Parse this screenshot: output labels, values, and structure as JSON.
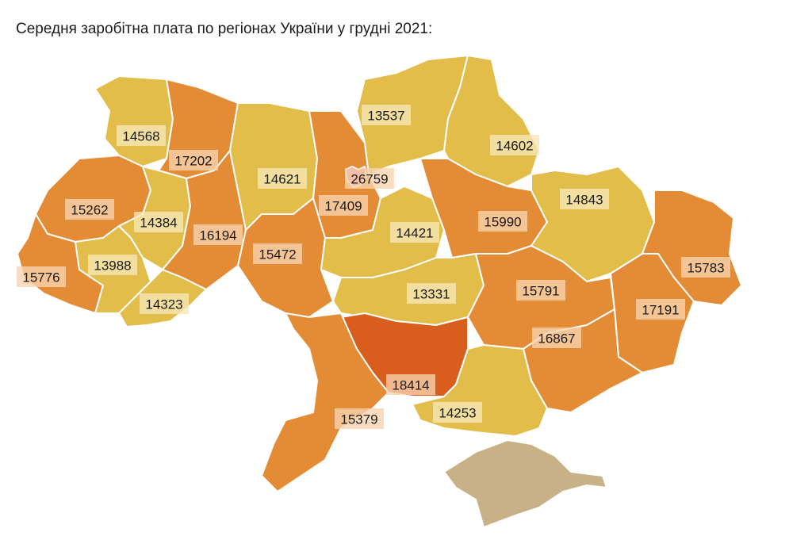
{
  "title": "Середня заробітна плата по регіонах України у грудні 2021:",
  "colors": {
    "low": "#e2bd4a",
    "mid": "#e48c35",
    "high": "#d95e1e",
    "top": "#e07a8a",
    "crimea": "#c8b187",
    "label_bg_light": "#f6e7b6",
    "label_bg_warm": "#f8d3b0"
  },
  "regions": [
    {
      "value": "14568",
      "tone": "low"
    },
    {
      "value": "17202",
      "tone": "mid"
    },
    {
      "value": "15262",
      "tone": "mid"
    },
    {
      "value": "14384",
      "tone": "low"
    },
    {
      "value": "15776",
      "tone": "mid"
    },
    {
      "value": "13988",
      "tone": "low"
    },
    {
      "value": "14323",
      "tone": "low"
    },
    {
      "value": "16194",
      "tone": "mid"
    },
    {
      "value": "14621",
      "tone": "low"
    },
    {
      "value": "15472",
      "tone": "mid"
    },
    {
      "value": "17409",
      "tone": "mid"
    },
    {
      "value": "26759",
      "tone": "top"
    },
    {
      "value": "13537",
      "tone": "low"
    },
    {
      "value": "14602",
      "tone": "low"
    },
    {
      "value": "14421",
      "tone": "low"
    },
    {
      "value": "15990",
      "tone": "mid"
    },
    {
      "value": "14843",
      "tone": "low"
    },
    {
      "value": "13331",
      "tone": "low"
    },
    {
      "value": "15791",
      "tone": "mid"
    },
    {
      "value": "15783",
      "tone": "mid"
    },
    {
      "value": "17191",
      "tone": "mid"
    },
    {
      "value": "16867",
      "tone": "mid"
    },
    {
      "value": "18414",
      "tone": "high"
    },
    {
      "value": "15379",
      "tone": "mid"
    },
    {
      "value": "14253",
      "tone": "low"
    }
  ],
  "crimea": {
    "tone": "crimea"
  }
}
